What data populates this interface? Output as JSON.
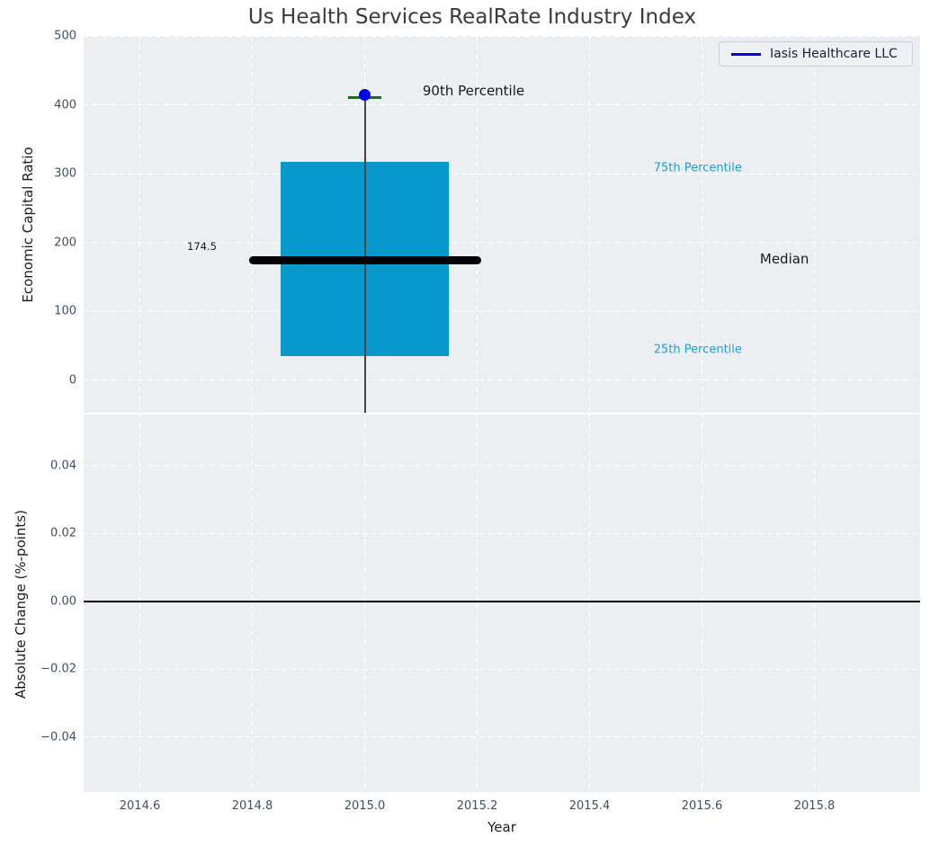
{
  "title": "Us Health Services RealRate Industry Index",
  "legend": {
    "label": "Iasis Healthcare LLC",
    "line_color": "#0000f0"
  },
  "colors": {
    "figure_bg": "#ffffff",
    "axes_bg": "#ebeff1",
    "grid": "#ffffff",
    "tick_label": "#3e5064",
    "box_fill": "#0899cc",
    "median_line": "#000000",
    "whisker": "#454545",
    "cap": "#007d00",
    "point": "#0000f0",
    "percentile_label": "#1d9fd3",
    "annotation_text": "#1a1a1a",
    "zero_line": "#000000"
  },
  "chart_data": [
    {
      "type": "boxplot",
      "title": "Us Health Services RealRate Industry Index",
      "ylabel": "Economic Capital Ratio",
      "ylim": [
        -47,
        500
      ],
      "yticks": [
        {
          "v": 0,
          "label": "0"
        },
        {
          "v": 100,
          "label": "100"
        },
        {
          "v": 200,
          "label": "200"
        },
        {
          "v": 300,
          "label": "300"
        },
        {
          "v": 400,
          "label": "400"
        },
        {
          "v": 500,
          "label": "500"
        }
      ],
      "xlim": [
        2014.5,
        2015.988
      ],
      "xticks": [
        {
          "v": 2014.6,
          "label": "2014.6"
        },
        {
          "v": 2014.8,
          "label": "2014.8"
        },
        {
          "v": 2015.0,
          "label": "2015.0"
        },
        {
          "v": 2015.2,
          "label": "2015.2"
        },
        {
          "v": 2015.4,
          "label": "2015.4"
        },
        {
          "v": 2015.6,
          "label": "2015.6"
        },
        {
          "v": 2015.8,
          "label": "2015.8"
        }
      ],
      "grid": true,
      "legend_position": "upper right",
      "box": {
        "x": 2015.0,
        "p25": 35,
        "median": 174.5,
        "p75": 317,
        "p90": 410,
        "whisker_low_clipped_at": -47,
        "box_halfwidth_years": 0.15,
        "median_halfwidth_years": 0.2,
        "cap_halfwidth_years": 0.03
      },
      "point": {
        "x": 2015.0,
        "y": 414,
        "series": "Iasis Healthcare LLC"
      },
      "annotations": [
        {
          "id": "90th-percentile",
          "text": "90th Percentile",
          "x": 2015.103,
          "y": 420,
          "color_key": "annotation_text",
          "size": 15
        },
        {
          "id": "75th-percentile",
          "text": "75th Percentile",
          "x": 2015.514,
          "y": 308,
          "color_key": "percentile_label",
          "size": 13
        },
        {
          "id": "median",
          "text": "Median",
          "x": 2015.703,
          "y": 176,
          "color_key": "annotation_text",
          "size": 15
        },
        {
          "id": "25th-percentile",
          "text": "25th Percentile",
          "x": 2015.514,
          "y": 44,
          "color_key": "percentile_label",
          "size": 13
        },
        {
          "id": "median-value",
          "text": "174.5",
          "x": 2014.684,
          "y": 195,
          "color_key": "annotation_text",
          "size": 11.5
        }
      ]
    },
    {
      "type": "line",
      "ylabel": "Absolute Change (%-points)",
      "xlabel": "Year",
      "ylim": [
        -0.0562,
        0.0551
      ],
      "yticks": [
        {
          "v": 0.04,
          "label": "0.04"
        },
        {
          "v": 0.02,
          "label": "0.02"
        },
        {
          "v": 0.0,
          "label": "0.00"
        },
        {
          "v": -0.02,
          "label": "−0.02"
        },
        {
          "v": -0.04,
          "label": "−0.04"
        }
      ],
      "xlim": [
        2014.5,
        2015.988
      ],
      "xticks": [
        {
          "v": 2014.6,
          "label": "2014.6"
        },
        {
          "v": 2014.8,
          "label": "2014.8"
        },
        {
          "v": 2015.0,
          "label": "2015.0"
        },
        {
          "v": 2015.2,
          "label": "2015.2"
        },
        {
          "v": 2015.4,
          "label": "2015.4"
        },
        {
          "v": 2015.6,
          "label": "2015.6"
        },
        {
          "v": 2015.8,
          "label": "2015.8"
        }
      ],
      "grid": true,
      "zero_line": 0.0,
      "series": []
    }
  ]
}
